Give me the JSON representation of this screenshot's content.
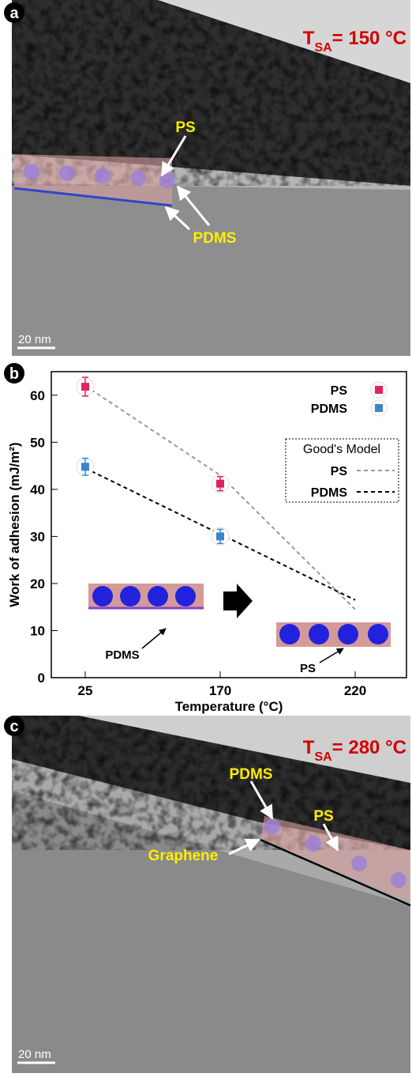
{
  "panel_a": {
    "label": "a",
    "temperature": {
      "symbol": "T",
      "subscript": "SA",
      "value": "= 150 °C"
    },
    "labels": [
      "PS",
      "PDMS"
    ],
    "scale_bar": "20 nm"
  },
  "chart_data": {
    "type": "scatter",
    "panel_label": "b",
    "x_label": "Temperature (°C)",
    "y_label": "Work of adhesion (mJ/m²)",
    "categories": [
      "25",
      "170",
      "220"
    ],
    "series": [
      {
        "name": "PS",
        "color": "#e0245e",
        "values": [
          61.8,
          41.2,
          null
        ],
        "errors": [
          2,
          1.5,
          null
        ]
      },
      {
        "name": "PDMS",
        "color": "#3a86c8",
        "values": [
          44.8,
          30,
          null
        ],
        "errors": [
          1.8,
          1.5,
          null
        ]
      }
    ],
    "model": {
      "title": "Good's Model",
      "series": [
        {
          "name": "PS",
          "color": "#999999",
          "values": [
            62,
            43,
            14.5
          ]
        },
        {
          "name": "PDMS",
          "color": "#000000",
          "values": [
            44.5,
            30.5,
            16.5
          ]
        }
      ]
    },
    "ylim": [
      0,
      65
    ],
    "yticks": [
      0,
      10,
      20,
      30,
      40,
      50,
      60
    ],
    "legend": "upper right",
    "annotations": [
      "PDMS",
      "PS"
    ]
  },
  "panel_c": {
    "label": "c",
    "temperature": {
      "symbol": "T",
      "subscript": "SA",
      "value": "= 280 °C"
    },
    "labels": [
      "PDMS",
      "PS",
      "Graphene"
    ],
    "scale_bar": "20 nm"
  }
}
